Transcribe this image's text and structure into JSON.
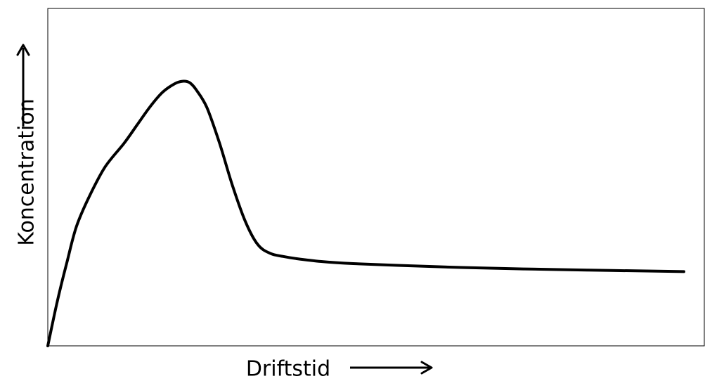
{
  "chart_data": {
    "type": "line",
    "title": "",
    "xlabel": "Driftstid",
    "ylabel": "Koncentration",
    "xlim": [
      0,
      100
    ],
    "ylim": [
      0,
      100
    ],
    "grid": false,
    "legend": "none",
    "colors": {
      "line": "#000000",
      "frame": "#000000"
    },
    "series": [
      {
        "x": [
          0,
          1.5,
          3,
          4.5,
          6.5,
          9,
          12,
          14,
          16,
          18,
          20,
          21.3,
          22.3,
          23.3,
          25,
          27,
          29,
          31,
          33,
          35,
          37,
          39,
          43,
          48,
          55,
          65,
          75,
          85,
          95,
          100
        ],
        "y": [
          0,
          15,
          28,
          40,
          50,
          60,
          68,
          74,
          80,
          85,
          88,
          88.8,
          88.3,
          86,
          80,
          68,
          54,
          42,
          34,
          31,
          30,
          29.3,
          28.3,
          27.6,
          27,
          26.3,
          25.8,
          25.4,
          25.1,
          24.9
        ]
      }
    ]
  }
}
